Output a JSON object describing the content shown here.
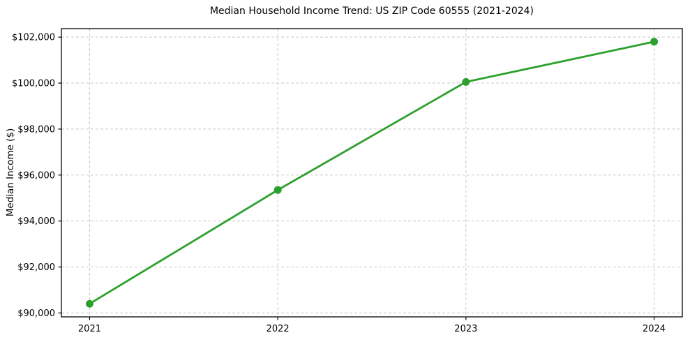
{
  "chart_data": {
    "type": "line",
    "title": "Median Household Income Trend: US ZIP Code 60555 (2021-2024)",
    "ylabel": "Median Income ($)",
    "xlabel": "",
    "x": [
      2021,
      2022,
      2023,
      2024
    ],
    "series": [
      {
        "name": "Median Household Income",
        "values": [
          90400,
          95350,
          100050,
          101800
        ]
      }
    ],
    "xlim": [
      2020.85,
      2024.15
    ],
    "ylim": [
      89830,
      102370
    ],
    "xticks": {
      "values": [
        2021,
        2022,
        2023,
        2024
      ],
      "labels": [
        "2021",
        "2022",
        "2023",
        "2024"
      ]
    },
    "yticks": {
      "values": [
        90000,
        92000,
        94000,
        96000,
        98000,
        100000,
        102000
      ],
      "labels": [
        "$90,000",
        "$92,000",
        "$94,000",
        "$96,000",
        "$98,000",
        "$100,000",
        "$102,000"
      ]
    },
    "grid": true,
    "grid_style": "dashed",
    "legend": false,
    "marker": "circle",
    "colors": {
      "line": "#2ca02c",
      "marker": "#2ca02c",
      "grid": "#c8c8c8",
      "spine": "#000000",
      "text": "#000000",
      "background": "#ffffff"
    }
  }
}
